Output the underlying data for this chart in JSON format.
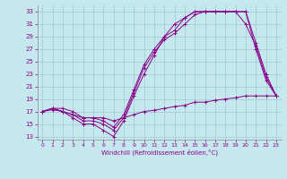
{
  "xlabel": "Windchill (Refroidissement éolien,°C)",
  "xlim": [
    -0.5,
    23.5
  ],
  "ylim": [
    12.5,
    34
  ],
  "xticks": [
    0,
    1,
    2,
    3,
    4,
    5,
    6,
    7,
    8,
    9,
    10,
    11,
    12,
    13,
    14,
    15,
    16,
    17,
    18,
    19,
    20,
    21,
    22,
    23
  ],
  "yticks": [
    13,
    15,
    17,
    19,
    21,
    23,
    25,
    27,
    29,
    31,
    33
  ],
  "bg_color": "#c5e8ee",
  "line_color": "#880088",
  "grid_color": "#a0c8d0",
  "lines": [
    {
      "x": [
        0,
        1,
        2,
        3,
        4,
        5,
        6,
        7,
        8,
        9,
        10,
        11,
        12,
        13,
        14,
        15,
        16,
        17,
        18,
        19,
        20,
        21,
        22,
        23
      ],
      "y": [
        17,
        17.5,
        17,
        16,
        15,
        15,
        14,
        13,
        15.5,
        19.5,
        23,
        26,
        29,
        31,
        32,
        33,
        33,
        33,
        33,
        33,
        33,
        27,
        22,
        19.5
      ]
    },
    {
      "x": [
        0,
        1,
        2,
        3,
        4,
        5,
        6,
        7,
        8,
        9,
        10,
        11,
        12,
        13,
        14,
        15,
        16,
        17,
        18,
        19,
        20,
        21,
        22,
        23
      ],
      "y": [
        17,
        17.5,
        17,
        16.5,
        15.5,
        15.5,
        15,
        14,
        16,
        20,
        24,
        26.5,
        28.5,
        29.5,
        31,
        32.5,
        33,
        33,
        33,
        33,
        33,
        28,
        23,
        19.5
      ]
    },
    {
      "x": [
        0,
        1,
        2,
        3,
        4,
        5,
        6,
        7,
        8,
        9,
        10,
        11,
        12,
        13,
        14,
        15,
        16,
        17,
        18,
        19,
        20,
        21,
        22,
        23
      ],
      "y": [
        17,
        17.5,
        17.5,
        17,
        16,
        16,
        15.5,
        14.5,
        16.5,
        20.5,
        24.5,
        27,
        29,
        30,
        32,
        33,
        33,
        33,
        33,
        33,
        31,
        27.5,
        22.5,
        19.5
      ]
    },
    {
      "x": [
        0,
        1,
        2,
        3,
        4,
        5,
        6,
        7,
        8,
        9,
        10,
        11,
        12,
        13,
        14,
        15,
        16,
        17,
        18,
        19,
        20,
        21,
        22,
        23
      ],
      "y": [
        17,
        17.3,
        17,
        16.5,
        16,
        16,
        16,
        15.5,
        16,
        16.5,
        17,
        17.2,
        17.5,
        17.8,
        18,
        18.5,
        18.5,
        18.8,
        19,
        19.2,
        19.5,
        19.5,
        19.5,
        19.5
      ]
    }
  ]
}
